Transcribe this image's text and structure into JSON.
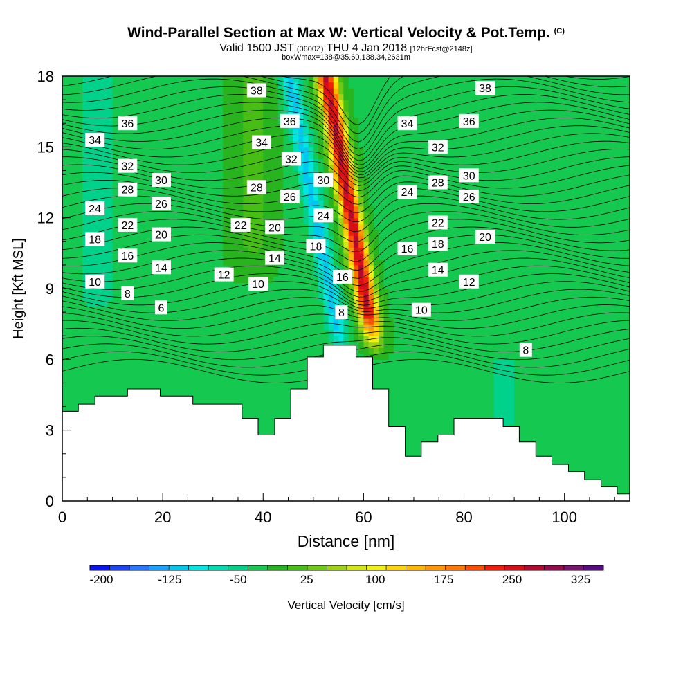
{
  "header": {
    "title": "Wind-Parallel Section at Max W: Vertical Velocity & Pot.Temp.",
    "copyright": "(C)",
    "valid_prefix": "Valid 1500 JST",
    "valid_utc": "(0600Z)",
    "valid_date": "THU 4 Jan 2018",
    "forecast": "[12hrFcst@2148z]",
    "box_info": "boxWmax=138@35.60,138.34,2631m"
  },
  "chart_data": {
    "type": "heatmap",
    "xlabel": "Distance [nm]",
    "ylabel": "Height [Kft MSL]",
    "xlim": [
      0,
      113
    ],
    "ylim": [
      0,
      18
    ],
    "x_ticks": [
      "0",
      "20",
      "40",
      "60",
      "80",
      "100"
    ],
    "y_ticks": [
      "0",
      "3",
      "6",
      "9",
      "12",
      "15",
      "18"
    ],
    "x_tick_values": [
      0,
      20,
      40,
      60,
      80,
      100
    ],
    "y_tick_values": [
      0,
      3,
      6,
      9,
      12,
      15,
      18
    ],
    "colorbar": {
      "label": "Vertical Velocity [cm/s]",
      "tick_labels": [
        "-200",
        "-125",
        "-50",
        "25",
        "100",
        "175",
        "250",
        "325"
      ],
      "min": -212.5,
      "max": 350,
      "step": 25,
      "colors": [
        "#0a14f0",
        "#1e46f5",
        "#2878ff",
        "#1aa0ff",
        "#00c8f0",
        "#00e6e0",
        "#00dcb4",
        "#00d28c",
        "#14c850",
        "#28b41e",
        "#46be14",
        "#6ec814",
        "#a0d214",
        "#d2e614",
        "#f0f014",
        "#ffd20a",
        "#ffb400",
        "#ff9600",
        "#ff7800",
        "#ff5000",
        "#f01e0a",
        "#d70f19",
        "#b40a32",
        "#960a50",
        "#78146e",
        "#5a0a82"
      ]
    },
    "terrain": {
      "x": [
        0,
        3.2,
        3.2,
        6.5,
        6.5,
        13,
        13,
        19.5,
        19.5,
        26,
        26,
        35.8,
        35.8,
        39,
        39,
        42.3,
        42.3,
        45.5,
        45.5,
        48.8,
        48.8,
        52,
        52,
        58.5,
        58.5,
        61.8,
        61.8,
        65,
        65,
        68.3,
        68.3,
        71.5,
        71.5,
        74.8,
        74.8,
        78,
        78,
        87.8,
        87.8,
        91,
        91,
        94.3,
        94.3,
        97.5,
        97.5,
        100.8,
        100.8,
        104,
        104,
        107.3,
        107.3,
        110.5,
        110.5,
        113
      ],
      "height_kft": [
        3.8,
        3.8,
        4.1,
        4.1,
        4.45,
        4.45,
        4.75,
        4.75,
        4.45,
        4.45,
        4.1,
        4.1,
        3.5,
        3.5,
        2.8,
        2.8,
        3.5,
        3.5,
        4.75,
        4.75,
        6.1,
        6.1,
        6.6,
        6.6,
        6.1,
        6.1,
        4.75,
        4.75,
        3.15,
        3.15,
        1.9,
        1.9,
        2.5,
        2.5,
        2.8,
        2.8,
        3.5,
        3.5,
        3.15,
        3.15,
        2.5,
        2.5,
        1.9,
        1.9,
        1.55,
        1.55,
        1.25,
        1.25,
        0.9,
        0.9,
        0.6,
        0.6,
        0.3,
        0.3
      ]
    },
    "vertical_velocity_features": [
      {
        "x_center": 61.8,
        "z_bottom": 7.0,
        "z_top": 18.0,
        "lean": -0.28,
        "width": 2.0,
        "peak_cm_s": 330
      },
      {
        "x_center": 55.5,
        "z_bottom": 6.5,
        "z_top": 18.0,
        "lean": -0.3,
        "width": 1.8,
        "peak_cm_s": -110
      },
      {
        "x_center": 7.0,
        "z_bottom": 8.0,
        "z_top": 18.0,
        "lean": 0.0,
        "width": 4.5,
        "peak_cm_s": -40
      },
      {
        "x_center": 38.0,
        "z_bottom": 10.0,
        "z_top": 18.0,
        "lean": 0.0,
        "width": 4.0,
        "peak_cm_s": 35
      },
      {
        "x_center": 88.0,
        "z_bottom": 3.0,
        "z_top": 5.0,
        "lean": 0.0,
        "width": 3.0,
        "peak_cm_s": -45
      }
    ],
    "isentrope_labels": [
      {
        "text": "38",
        "x": 38.7,
        "z": 17.4
      },
      {
        "text": "36",
        "x": 13.0,
        "z": 16.0
      },
      {
        "text": "36",
        "x": 45.3,
        "z": 16.1
      },
      {
        "text": "34",
        "x": 6.5,
        "z": 15.3
      },
      {
        "text": "34",
        "x": 39.7,
        "z": 15.2
      },
      {
        "text": "32",
        "x": 13.0,
        "z": 14.2
      },
      {
        "text": "32",
        "x": 45.6,
        "z": 14.5
      },
      {
        "text": "30",
        "x": 19.7,
        "z": 13.6
      },
      {
        "text": "30",
        "x": 52.0,
        "z": 13.6
      },
      {
        "text": "28",
        "x": 13.0,
        "z": 13.2
      },
      {
        "text": "28",
        "x": 38.7,
        "z": 13.3
      },
      {
        "text": "26",
        "x": 19.7,
        "z": 12.6
      },
      {
        "text": "26",
        "x": 45.3,
        "z": 12.9
      },
      {
        "text": "24",
        "x": 6.5,
        "z": 12.4
      },
      {
        "text": "24",
        "x": 52.0,
        "z": 12.1
      },
      {
        "text": "22",
        "x": 13.0,
        "z": 11.7
      },
      {
        "text": "22",
        "x": 35.5,
        "z": 11.7
      },
      {
        "text": "20",
        "x": 19.7,
        "z": 11.3
      },
      {
        "text": "20",
        "x": 42.3,
        "z": 11.6
      },
      {
        "text": "18",
        "x": 6.5,
        "z": 11.1
      },
      {
        "text": "18",
        "x": 50.5,
        "z": 10.8
      },
      {
        "text": "16",
        "x": 13.0,
        "z": 10.4
      },
      {
        "text": "14",
        "x": 19.7,
        "z": 9.9
      },
      {
        "text": "14",
        "x": 42.3,
        "z": 10.3
      },
      {
        "text": "12",
        "x": 32.2,
        "z": 9.6
      },
      {
        "text": "10",
        "x": 6.5,
        "z": 9.3
      },
      {
        "text": "10",
        "x": 39.0,
        "z": 9.2
      },
      {
        "text": "16",
        "x": 55.8,
        "z": 9.5
      },
      {
        "text": "8",
        "x": 13.0,
        "z": 8.8
      },
      {
        "text": "6",
        "x": 19.7,
        "z": 8.2
      },
      {
        "text": "8",
        "x": 55.6,
        "z": 8.0
      },
      {
        "text": "34",
        "x": 68.7,
        "z": 16.0
      },
      {
        "text": "36",
        "x": 81.0,
        "z": 16.1
      },
      {
        "text": "38",
        "x": 84.2,
        "z": 17.5
      },
      {
        "text": "32",
        "x": 74.8,
        "z": 15.0
      },
      {
        "text": "30",
        "x": 81.0,
        "z": 13.8
      },
      {
        "text": "28",
        "x": 74.8,
        "z": 13.5
      },
      {
        "text": "26",
        "x": 81.0,
        "z": 12.9
      },
      {
        "text": "24",
        "x": 68.7,
        "z": 13.1
      },
      {
        "text": "22",
        "x": 74.8,
        "z": 11.8
      },
      {
        "text": "20",
        "x": 84.2,
        "z": 11.2
      },
      {
        "text": "18",
        "x": 74.8,
        "z": 10.9
      },
      {
        "text": "16",
        "x": 68.7,
        "z": 10.7
      },
      {
        "text": "14",
        "x": 74.8,
        "z": 9.8
      },
      {
        "text": "12",
        "x": 81.0,
        "z": 9.3
      },
      {
        "text": "10",
        "x": 71.5,
        "z": 8.1
      },
      {
        "text": "8",
        "x": 92.3,
        "z": 6.4
      }
    ],
    "grid": false,
    "legend": "bottom"
  }
}
